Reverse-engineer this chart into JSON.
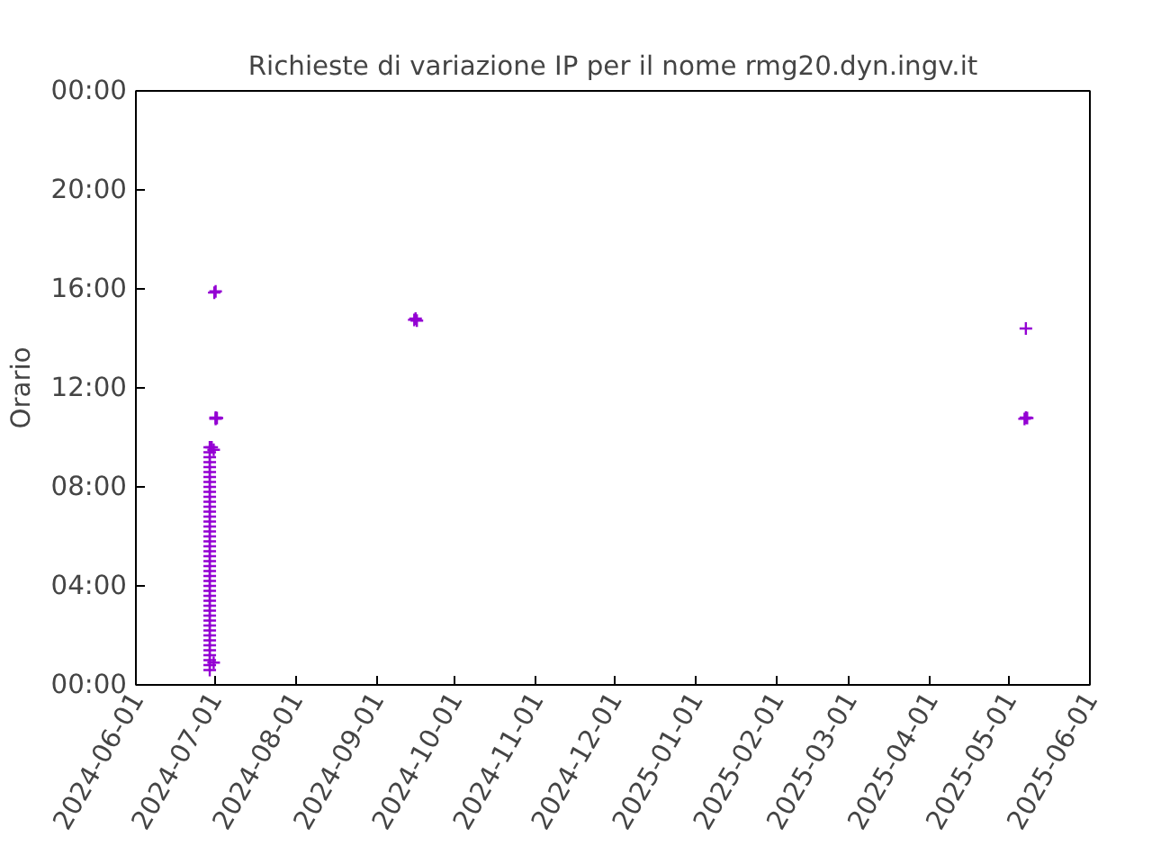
{
  "chart_data": {
    "type": "scatter",
    "title": "Richieste di variazione IP per il nome rmg20.dyn.ingv.it",
    "ylabel": "Orario",
    "marker": "cross",
    "grid": false,
    "series": [
      {
        "color": "#9400d3",
        "x": [
          "2024-06-29T06:00",
          "2024-06-29T06:00",
          "2024-06-29T06:00",
          "2024-06-29T06:00",
          "2024-06-29T06:00",
          "2024-06-29T06:00",
          "2024-06-29T06:00",
          "2024-06-29T06:00",
          "2024-06-29T06:00",
          "2024-06-29T06:00",
          "2024-06-29T06:00",
          "2024-06-29T06:00",
          "2024-06-29T06:00",
          "2024-06-29T06:00",
          "2024-06-29T06:00",
          "2024-06-29T06:00",
          "2024-06-29T06:00",
          "2024-06-29T06:00",
          "2024-06-29T06:00",
          "2024-06-29T06:00",
          "2024-06-29T06:00",
          "2024-06-29T06:00",
          "2024-06-29T06:00",
          "2024-06-29T06:00",
          "2024-06-29T06:00",
          "2024-06-29T06:00",
          "2024-06-29T06:00",
          "2024-06-29T06:00",
          "2024-06-29T06:00",
          "2024-06-29T06:00",
          "2024-06-29T06:00",
          "2024-06-29T06:00",
          "2024-06-29T06:00",
          "2024-06-29T06:00",
          "2024-06-29T06:00",
          "2024-06-29T06:00",
          "2024-06-29T06:00",
          "2024-06-29T06:00",
          "2024-06-29T06:00",
          "2024-06-29T06:00",
          "2024-06-29T06:00",
          "2024-06-29T06:00",
          "2024-06-29T06:00",
          "2024-06-29T06:00",
          "2024-06-29T06:00",
          "2024-06-29T06:00",
          "2024-06-30T00:00",
          "2024-06-30T18:00",
          "2024-06-30T18:00",
          "2024-07-01T12:00",
          "2024-07-01T12:00",
          "2024-07-02T00:00",
          "2024-07-01T00:00",
          "2024-07-01T12:00",
          "2024-09-15T12:00",
          "2024-09-16T00:00",
          "2024-09-16T12:00",
          "2025-05-07T12:00",
          "2025-05-07T00:00",
          "2025-05-07T12:00",
          "2025-05-08T00:00"
        ],
        "values": [
          0.6,
          0.8,
          1.0,
          1.2,
          1.4,
          1.6,
          1.8,
          2.0,
          2.2,
          2.4,
          2.6,
          2.8,
          3.0,
          3.2,
          3.4,
          3.6,
          3.8,
          4.0,
          4.2,
          4.4,
          4.6,
          4.8,
          5.0,
          5.2,
          5.4,
          5.6,
          5.8,
          6.0,
          6.2,
          6.4,
          6.6,
          6.8,
          7.0,
          7.2,
          7.4,
          7.6,
          7.8,
          8.0,
          8.2,
          8.4,
          8.6,
          8.8,
          9.0,
          9.2,
          9.4,
          9.6,
          9.6,
          0.9,
          9.5,
          10.75,
          10.8,
          10.78,
          15.85,
          15.9,
          14.75,
          14.8,
          14.72,
          14.4,
          10.75,
          10.8,
          10.78
        ]
      }
    ],
    "xlim": [
      "2024-06-01",
      "2025-06-01"
    ],
    "xticks": [
      "2024-06-01",
      "2024-07-01",
      "2024-08-01",
      "2024-09-01",
      "2024-10-01",
      "2024-11-01",
      "2024-12-01",
      "2025-01-01",
      "2025-02-01",
      "2025-03-01",
      "2025-04-01",
      "2025-05-01",
      "2025-06-01"
    ],
    "ylim": [
      0,
      24
    ],
    "yticks": [
      {
        "value": 0,
        "label": "00:00"
      },
      {
        "value": 4,
        "label": "04:00"
      },
      {
        "value": 8,
        "label": "08:00"
      },
      {
        "value": 12,
        "label": "12:00"
      },
      {
        "value": 16,
        "label": "16:00"
      },
      {
        "value": 20,
        "label": "20:00"
      },
      {
        "value": 24,
        "label": "00:00"
      }
    ]
  }
}
